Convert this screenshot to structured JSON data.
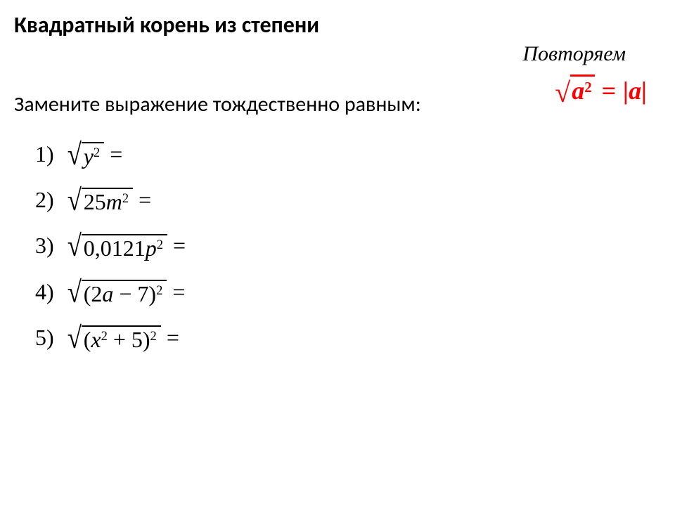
{
  "title": "Квадратный корень из степени",
  "review_label": "Повторяем",
  "prompt": "Замените выражение тождественно равным:",
  "formula": {
    "radicand_base": "a",
    "radicand_exp": "2",
    "rhs": "|a|",
    "color": "#ff0000",
    "font_size_pt": 36
  },
  "problems": [
    {
      "n": "1)",
      "expr_html": "y<sup>2</sup>"
    },
    {
      "n": "2)",
      "expr_html": "<span class=\"up\">25</span>m<sup>2</sup>"
    },
    {
      "n": "3)",
      "expr_html": "<span class=\"up\">0,0121</span>p<sup>2</sup>"
    },
    {
      "n": "4)",
      "expr_html": "<span class=\"up\">(2</span>a <span class=\"up\">− 7)</span><sup>2</sup>"
    },
    {
      "n": "5)",
      "expr_html": "<span class=\"up\">(</span>x<sup>2</sup> <span class=\"up\">+ 5)</span><sup>2</sup>"
    }
  ],
  "equals_sign": "=",
  "styling": {
    "title_fontsize": 32,
    "title_weight": 700,
    "prompt_fontsize": 30,
    "math_fontsize": 32,
    "background_color": "#ffffff",
    "text_color": "#000000",
    "review_font_style": "italic",
    "math_font_family": "Cambria Math"
  }
}
